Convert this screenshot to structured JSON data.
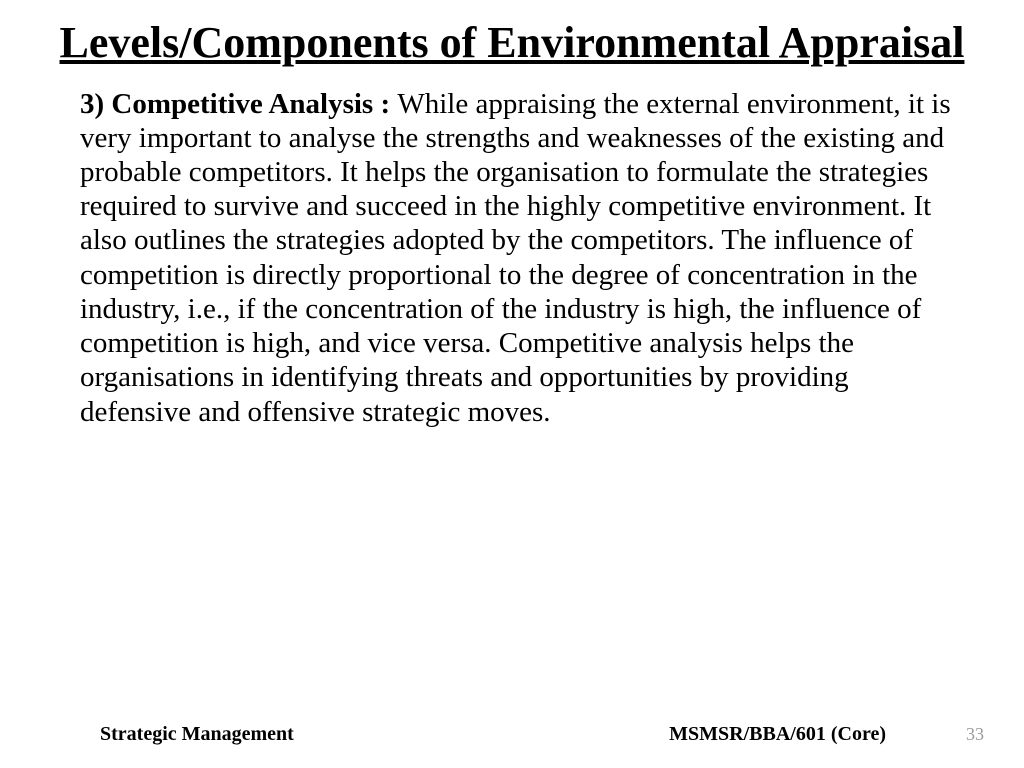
{
  "title": "Levels/Components of Environmental Appraisal",
  "body": {
    "lead": "3) Competitive Analysis :  ",
    "text": "While appraising the external environment, it is very important to analyse the strengths and weaknesses of the existing and probable competitors. It helps the organisation to formulate the strategies required to survive and succeed in the highly competitive environment. It also outlines the strategies adopted by the competitors. The influence of competition is directly proportional to the degree of concentration in the industry, i.e., if the concentration of the industry is high, the influence of competition is high, and vice versa. Competitive analysis helps the organisations in identifying threats and opportunities by providing defensive and offensive strategic moves."
  },
  "footer": {
    "left": "Strategic Management",
    "right": "MSMSR/BBA/601 (Core)",
    "page": "33"
  },
  "style": {
    "title_fontsize": 44,
    "body_fontsize": 29,
    "footer_fontsize": 20,
    "page_num_fontsize": 18,
    "text_color": "#000000",
    "page_num_color": "#9a9a9a",
    "background_color": "#ffffff",
    "font_family": "Times New Roman"
  }
}
